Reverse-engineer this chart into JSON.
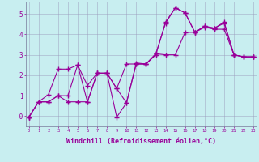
{
  "background_color": "#c8eef0",
  "grid_color": "#9999bb",
  "line_color": "#990099",
  "marker": "+",
  "xlabel": "Windchill (Refroidissement éolien,°C)",
  "xlabel_fontsize": 6,
  "ytick_labels": [
    "-0",
    "1",
    "2",
    "3",
    "4",
    "5"
  ],
  "ytick_vals": [
    0,
    1,
    2,
    3,
    4,
    5
  ],
  "xticks": [
    0,
    1,
    2,
    3,
    4,
    5,
    6,
    7,
    8,
    9,
    10,
    11,
    12,
    13,
    14,
    15,
    16,
    17,
    18,
    19,
    20,
    21,
    22,
    23
  ],
  "xlim": [
    -0.3,
    23.3
  ],
  "ylim": [
    -0.5,
    5.6
  ],
  "x": [
    0,
    1,
    2,
    3,
    4,
    5,
    6,
    7,
    8,
    9,
    10,
    11,
    12,
    13,
    14,
    15,
    16,
    17,
    18,
    19,
    20,
    21,
    22,
    23
  ],
  "series1": [
    -0.05,
    0.7,
    0.7,
    1.0,
    1.0,
    2.5,
    0.7,
    2.1,
    2.1,
    -0.05,
    0.65,
    2.6,
    2.55,
    3.0,
    4.6,
    5.3,
    5.05,
    4.1,
    4.4,
    4.3,
    4.6,
    3.0,
    2.9,
    2.9
  ],
  "series2": [
    -0.05,
    0.7,
    1.05,
    2.3,
    2.3,
    2.5,
    1.5,
    2.1,
    2.1,
    1.35,
    2.55,
    2.55,
    2.55,
    3.05,
    4.55,
    5.3,
    5.05,
    4.1,
    4.4,
    4.3,
    4.55,
    3.0,
    2.9,
    2.9
  ],
  "series3": [
    -0.05,
    0.7,
    0.7,
    1.0,
    0.7,
    0.7,
    0.7,
    2.1,
    2.1,
    1.35,
    0.65,
    2.55,
    2.55,
    3.05,
    3.0,
    3.0,
    4.1,
    4.1,
    4.35,
    4.25,
    4.25,
    3.0,
    2.9,
    2.9
  ]
}
